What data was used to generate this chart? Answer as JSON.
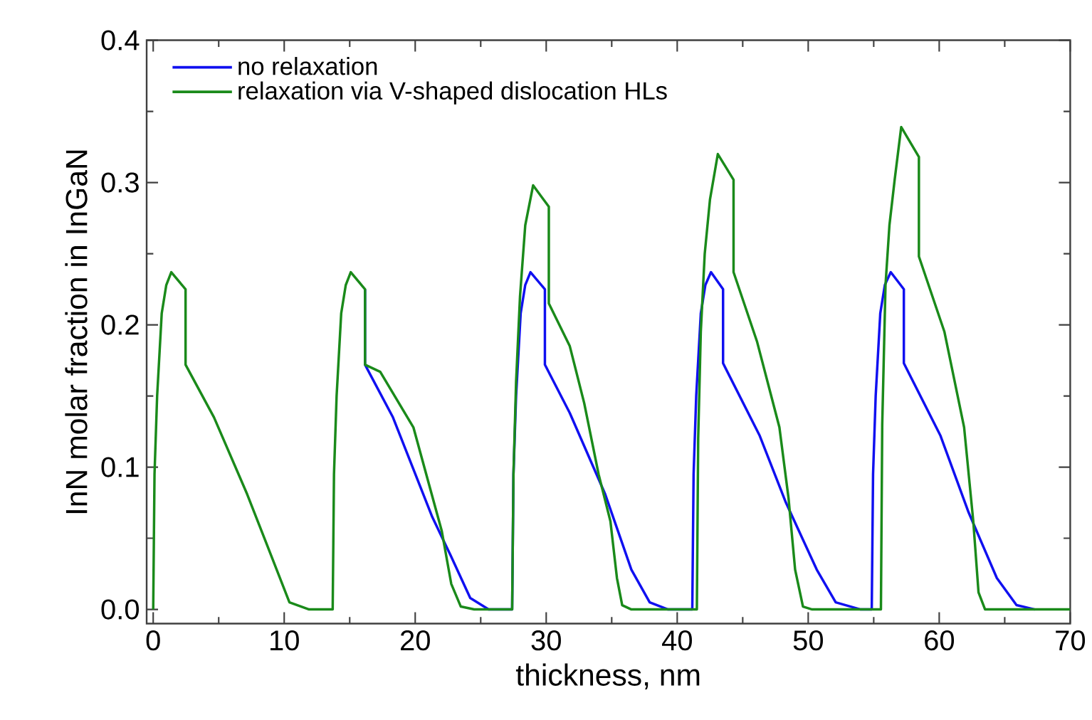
{
  "chart_data": {
    "type": "line",
    "xlabel": "thickness, nm",
    "ylabel": "InN molar fraction in InGaN",
    "xlim": [
      -0.5,
      70
    ],
    "ylim": [
      -0.01,
      0.4
    ],
    "xticks": [
      0,
      {
        "value": 5,
        "label": null
      },
      10,
      {
        "value": 15,
        "label": null
      },
      20,
      {
        "value": 25,
        "label": null
      },
      30,
      {
        "value": 35,
        "label": null
      },
      40,
      {
        "value": 45,
        "label": null
      },
      50,
      {
        "value": 55,
        "label": null
      },
      60,
      {
        "value": 65,
        "label": null
      },
      70
    ],
    "yticks": [
      {
        "value": 0,
        "label": "0.0"
      },
      {
        "value": 0.05,
        "label": null
      },
      {
        "value": 0.1,
        "label": "0.1"
      },
      {
        "value": 0.15,
        "label": null
      },
      {
        "value": 0.2,
        "label": "0.2"
      },
      {
        "value": 0.25,
        "label": null
      },
      {
        "value": 0.3,
        "label": "0.3"
      },
      {
        "value": 0.35,
        "label": null
      },
      {
        "value": 0.4,
        "label": "0.4"
      }
    ],
    "legend": "top left",
    "grid": false,
    "marker": "none",
    "line_style": "solid",
    "series": [
      {
        "name": "no relaxation",
        "color": "#1010f0",
        "x": [
          16.17,
          16.17,
          18.3,
          21.3,
          22.7,
          24.2,
          25.6,
          27.4,
          27.5,
          27.7,
          28.05,
          28.4,
          28.8,
          29.9,
          29.9,
          31.8,
          34.5,
          36.5,
          37.9,
          39.3,
          41.15,
          41.25,
          41.45,
          41.8,
          42.15,
          42.58,
          43.5,
          43.5,
          46.3,
          48.3,
          50.65,
          52.1,
          54.0,
          54.85,
          54.95,
          55.15,
          55.5,
          55.85,
          56.3,
          57.3,
          57.3,
          60.1,
          62.25,
          64.4,
          65.9,
          67.3
        ],
        "values": [
          0.225,
          0.172,
          0.135,
          0.065,
          0.038,
          0.008,
          0,
          0,
          0.095,
          0.15,
          0.208,
          0.228,
          0.237,
          0.225,
          0.172,
          0.138,
          0.081,
          0.028,
          0.005,
          0,
          0,
          0.095,
          0.15,
          0.208,
          0.228,
          0.237,
          0.225,
          0.173,
          0.122,
          0.075,
          0.028,
          0.005,
          0,
          0,
          0.095,
          0.15,
          0.208,
          0.228,
          0.237,
          0.225,
          0.173,
          0.122,
          0.068,
          0.022,
          0.003,
          0
        ]
      },
      {
        "name": "relaxation via V-shaped dislocation HLs",
        "color": "#1a8a1a",
        "x": [
          0,
          0.1,
          0.3,
          0.65,
          1.0,
          1.38,
          2.47,
          2.47,
          4.64,
          7.17,
          9.0,
          10.4,
          11.9,
          13.7,
          13.8,
          14.0,
          14.35,
          14.7,
          15.08,
          16.17,
          16.17,
          17.33,
          19.86,
          22.03,
          22.75,
          23.48,
          24.5,
          27.4,
          27.5,
          27.7,
          28.0,
          28.4,
          29.0,
          30.2,
          30.2,
          31.8,
          32.9,
          34.0,
          34.9,
          35.4,
          35.8,
          36.5,
          41.5,
          41.6,
          41.8,
          42.1,
          42.5,
          43.1,
          44.3,
          44.3,
          46.1,
          47.8,
          48.5,
          49.0,
          49.6,
          50.3,
          55.55,
          55.65,
          55.9,
          56.2,
          56.6,
          57.1,
          58.45,
          58.45,
          60.4,
          61.9,
          62.6,
          63.0,
          63.5,
          70
        ],
        "values": [
          0,
          0.095,
          0.15,
          0.208,
          0.228,
          0.237,
          0.225,
          0.172,
          0.135,
          0.081,
          0.038,
          0.005,
          0,
          0,
          0.095,
          0.15,
          0.208,
          0.228,
          0.237,
          0.225,
          0.172,
          0.167,
          0.128,
          0.055,
          0.018,
          0.002,
          0,
          0,
          0.095,
          0.16,
          0.22,
          0.27,
          0.298,
          0.283,
          0.215,
          0.185,
          0.145,
          0.095,
          0.062,
          0.022,
          0.003,
          0,
          0,
          0.12,
          0.195,
          0.25,
          0.288,
          0.32,
          0.302,
          0.237,
          0.188,
          0.128,
          0.078,
          0.028,
          0.002,
          0,
          0,
          0.13,
          0.228,
          0.27,
          0.302,
          0.339,
          0.318,
          0.248,
          0.195,
          0.128,
          0.062,
          0.012,
          0,
          0
        ]
      }
    ]
  }
}
